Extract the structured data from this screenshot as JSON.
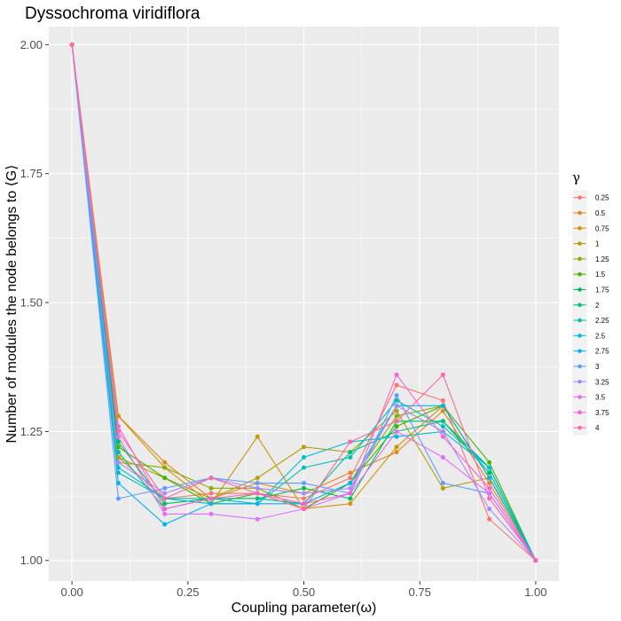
{
  "chart_data": {
    "type": "line",
    "title": "Dyssochroma viridiflora",
    "xlabel": "Coupling parameter(ω)",
    "ylabel": "Number of modules the node belongs to ⟨G⟩",
    "xlim": [
      -0.05,
      1.05
    ],
    "ylim": [
      0.96,
      2.035
    ],
    "x_ticks": [
      0.0,
      0.25,
      0.5,
      0.75,
      1.0
    ],
    "x_tick_labels": [
      "0.00",
      "0.25",
      "0.50",
      "0.75",
      "1.00"
    ],
    "y_ticks": [
      1.0,
      1.25,
      1.5,
      1.75,
      2.0
    ],
    "y_tick_labels": [
      "1.00",
      "1.25",
      "1.50",
      "1.75",
      "2.00"
    ],
    "grid": true,
    "legend_position": "right",
    "legend_title": "γ",
    "x": [
      0.0,
      0.1,
      0.2,
      0.3,
      0.4,
      0.5,
      0.6,
      0.7,
      0.8,
      0.9,
      1.0
    ],
    "series": [
      {
        "name": "0.25",
        "color": "#F8766D",
        "values": [
          2.0,
          1.2,
          1.12,
          1.13,
          1.13,
          1.12,
          1.16,
          1.34,
          1.31,
          1.08,
          1.0
        ]
      },
      {
        "name": "0.5",
        "color": "#E7851E",
        "values": [
          2.0,
          1.28,
          1.19,
          1.12,
          1.15,
          1.13,
          1.17,
          1.21,
          1.29,
          1.15,
          1.0
        ]
      },
      {
        "name": "0.75",
        "color": "#D09400",
        "values": [
          2.0,
          1.28,
          1.18,
          1.11,
          1.24,
          1.1,
          1.11,
          1.22,
          1.3,
          1.16,
          1.0
        ]
      },
      {
        "name": "1",
        "color": "#B2A100",
        "values": [
          2.0,
          1.2,
          1.16,
          1.12,
          1.16,
          1.22,
          1.21,
          1.29,
          1.14,
          1.16,
          1.0
        ]
      },
      {
        "name": "1.25",
        "color": "#89AC00",
        "values": [
          2.0,
          1.19,
          1.18,
          1.14,
          1.14,
          1.1,
          1.15,
          1.28,
          1.3,
          1.16,
          1.0
        ]
      },
      {
        "name": "1.5",
        "color": "#45B500",
        "values": [
          2.0,
          1.22,
          1.16,
          1.11,
          1.13,
          1.1,
          1.15,
          1.26,
          1.3,
          1.19,
          1.0
        ]
      },
      {
        "name": "1.75",
        "color": "#00BC51",
        "values": [
          2.0,
          1.23,
          1.11,
          1.12,
          1.12,
          1.14,
          1.12,
          1.27,
          1.27,
          1.17,
          1.0
        ]
      },
      {
        "name": "2",
        "color": "#00C087",
        "values": [
          2.0,
          1.21,
          1.1,
          1.12,
          1.12,
          1.11,
          1.21,
          1.25,
          1.27,
          1.18,
          1.0
        ]
      },
      {
        "name": "2.25",
        "color": "#00C0B2",
        "values": [
          2.0,
          1.17,
          1.12,
          1.12,
          1.11,
          1.18,
          1.2,
          1.31,
          1.26,
          1.18,
          1.0
        ]
      },
      {
        "name": "2.5",
        "color": "#00BCD6",
        "values": [
          2.0,
          1.18,
          1.12,
          1.11,
          1.11,
          1.2,
          1.23,
          1.24,
          1.25,
          1.18,
          1.0
        ]
      },
      {
        "name": "2.75",
        "color": "#00B3F2",
        "values": [
          2.0,
          1.15,
          1.07,
          1.11,
          1.11,
          1.11,
          1.15,
          1.3,
          1.3,
          1.16,
          1.0
        ]
      },
      {
        "name": "3",
        "color": "#619CFF",
        "values": [
          2.0,
          1.12,
          1.14,
          1.16,
          1.15,
          1.15,
          1.13,
          1.32,
          1.15,
          1.13,
          1.0
        ]
      },
      {
        "name": "3.25",
        "color": "#A58AFF",
        "values": [
          2.0,
          1.19,
          1.13,
          1.16,
          1.14,
          1.13,
          1.14,
          1.3,
          1.25,
          1.1,
          1.0
        ]
      },
      {
        "name": "3.5",
        "color": "#DF70F8",
        "values": [
          2.0,
          1.24,
          1.09,
          1.09,
          1.08,
          1.1,
          1.13,
          1.25,
          1.2,
          1.13,
          1.0
        ]
      },
      {
        "name": "3.75",
        "color": "#FB61D7",
        "values": [
          2.0,
          1.26,
          1.1,
          1.12,
          1.13,
          1.11,
          1.13,
          1.36,
          1.24,
          1.14,
          1.0
        ]
      },
      {
        "name": "4",
        "color": "#FF66A8",
        "values": [
          2.0,
          1.25,
          1.12,
          1.16,
          1.13,
          1.1,
          1.23,
          1.27,
          1.36,
          1.12,
          1.0
        ]
      }
    ]
  }
}
